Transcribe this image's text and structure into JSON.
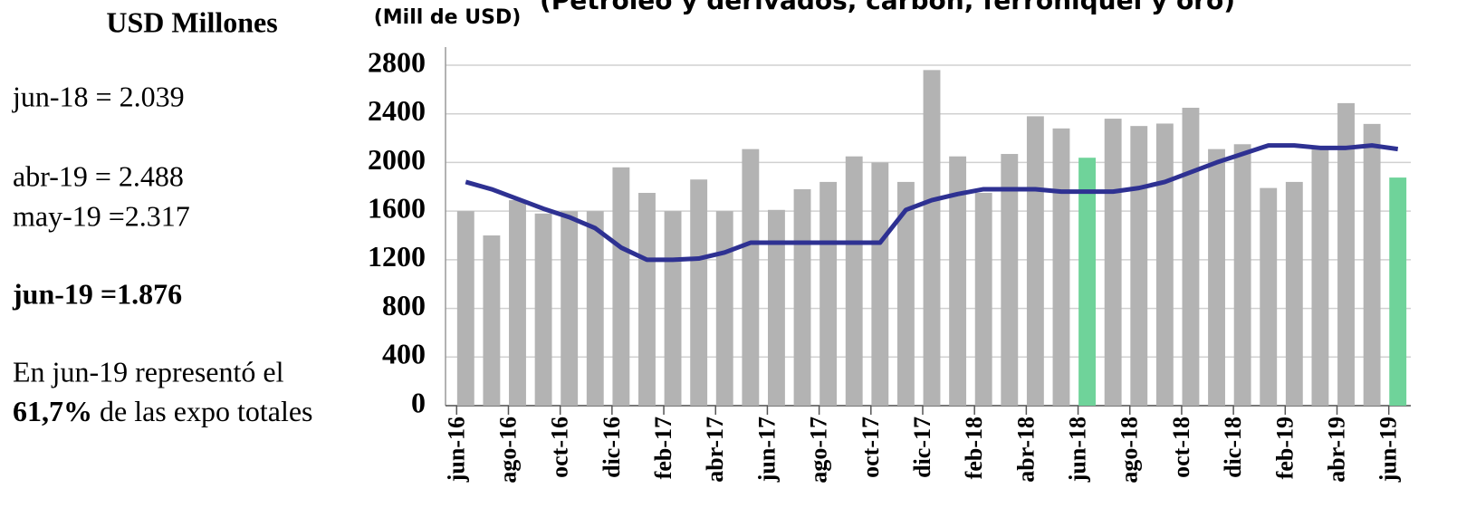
{
  "side_text": {
    "heading": "USD Millones",
    "line1": "jun-18 = 2.039",
    "line2": "abr-19 = 2.488",
    "line3": "may-19 =2.317",
    "line4": "jun-19 =1.876",
    "note1": "En jun-19 representó el",
    "note2_bold": "61,7%",
    "note2_rest": " de las expo totales"
  },
  "chart_data": {
    "type": "bar",
    "title": "(Petróleo y derivados, carbón, ferroníquel y oro)",
    "y_label": "(Mill de USD)",
    "categories": [
      "jun-16",
      null,
      "ago-16",
      null,
      "oct-16",
      null,
      "dic-16",
      null,
      "feb-17",
      null,
      "abr-17",
      null,
      "jun-17",
      null,
      "ago-17",
      null,
      "oct-17",
      null,
      "dic-17",
      null,
      "feb-18",
      null,
      "abr-18",
      null,
      "jun-18",
      null,
      "ago-18",
      null,
      "oct-18",
      null,
      "dic-18",
      null,
      "feb-19",
      null,
      "abr-19",
      null,
      "jun-19"
    ],
    "series": [
      {
        "type": "bar",
        "colors": [
          "#b3b3b3",
          "#b3b3b3",
          "#b3b3b3",
          "#b3b3b3",
          "#b3b3b3",
          "#b3b3b3",
          "#b3b3b3",
          "#b3b3b3",
          "#b3b3b3",
          "#b3b3b3",
          "#b3b3b3",
          "#b3b3b3",
          "#b3b3b3",
          "#b3b3b3",
          "#b3b3b3",
          "#b3b3b3",
          "#b3b3b3",
          "#b3b3b3",
          "#b3b3b3",
          "#b3b3b3",
          "#b3b3b3",
          "#b3b3b3",
          "#b3b3b3",
          "#b3b3b3",
          "#6fd39a",
          "#b3b3b3",
          "#b3b3b3",
          "#b3b3b3",
          "#b3b3b3",
          "#b3b3b3",
          "#b3b3b3",
          "#b3b3b3",
          "#b3b3b3",
          "#b3b3b3",
          "#b3b3b3",
          "#b3b3b3",
          "#6fd39a"
        ],
        "values": [
          1600,
          1400,
          1690,
          1580,
          1600,
          1600,
          1960,
          1750,
          1600,
          1860,
          1600,
          2110,
          1610,
          1780,
          1840,
          2050,
          2000,
          1840,
          2760,
          2050,
          1750,
          2070,
          2380,
          2280,
          2039,
          2360,
          2300,
          2320,
          2450,
          2110,
          2150,
          1790,
          1840,
          2120,
          2488,
          2317,
          1876
        ]
      },
      {
        "type": "line",
        "color": "#2e3192",
        "values": [
          1840,
          1780,
          1700,
          1620,
          1550,
          1460,
          1300,
          1200,
          1200,
          1210,
          1260,
          1340,
          1340,
          1340,
          1340,
          1340,
          1340,
          1610,
          1690,
          1740,
          1780,
          1780,
          1780,
          1760,
          1760,
          1760,
          1790,
          1840,
          1920,
          2000,
          2070,
          2140,
          2140,
          2120,
          2120,
          2140,
          2110
        ]
      }
    ],
    "ylim": [
      0,
      2800
    ],
    "yticks": [
      0,
      400,
      800,
      1200,
      1600,
      2000,
      2400,
      2800
    ],
    "grid": true
  }
}
